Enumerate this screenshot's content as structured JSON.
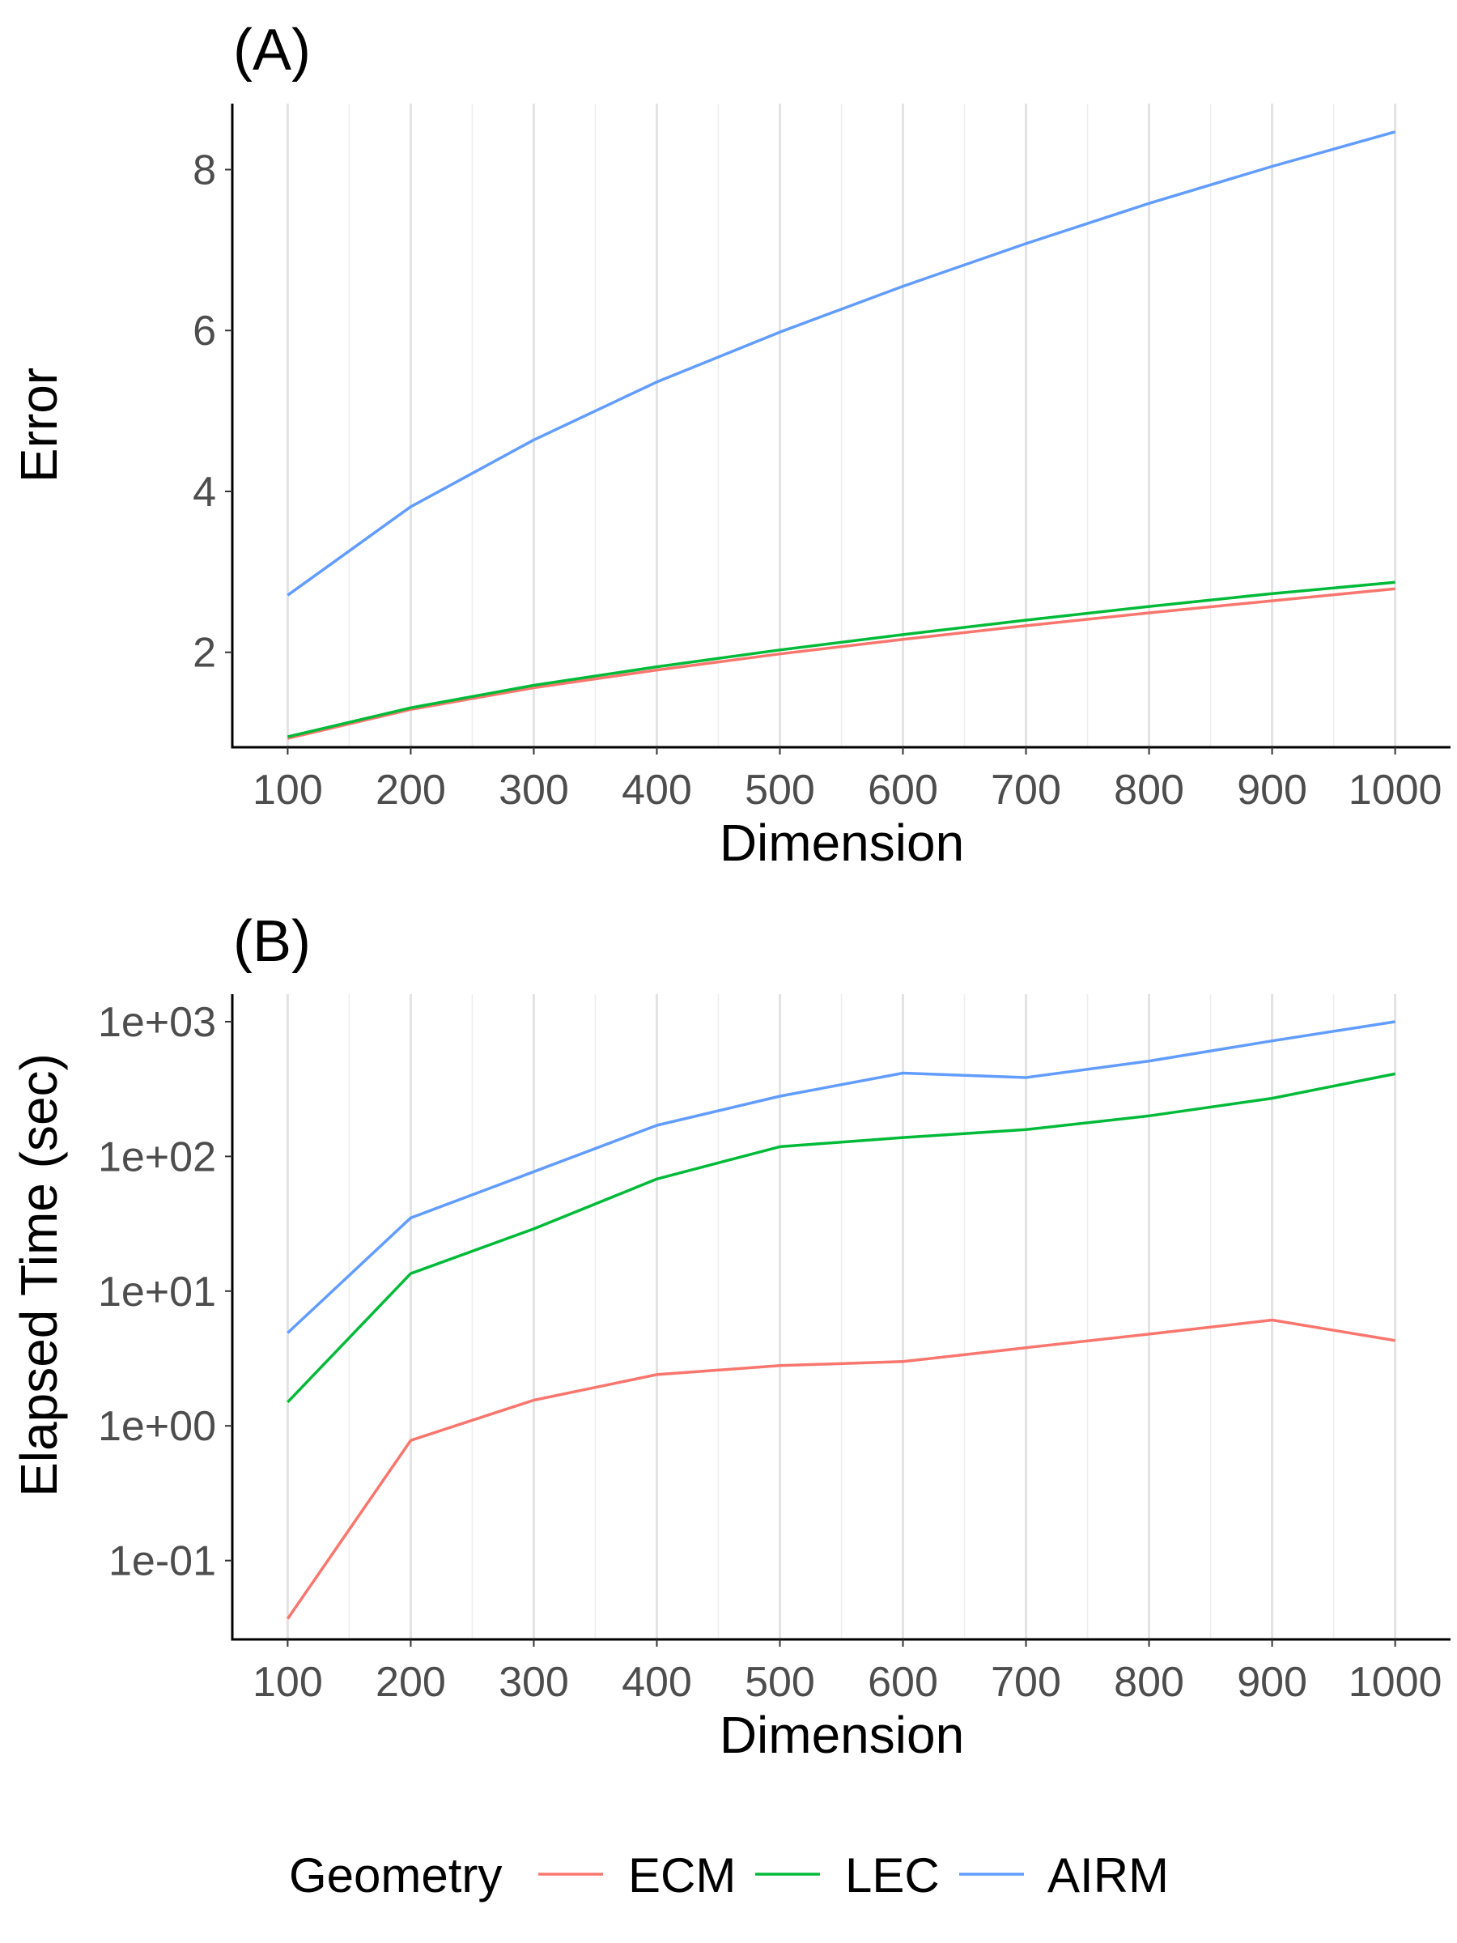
{
  "chart_data": [
    {
      "type": "line",
      "title": "(A)",
      "xlabel": "Dimension",
      "ylabel": "Error",
      "yscale": "linear",
      "x": [
        100,
        200,
        300,
        400,
        500,
        600,
        700,
        800,
        900,
        1000
      ],
      "xlim": [
        55,
        1045
      ],
      "ylim": [
        0.82,
        8.82
      ],
      "x_ticks": [
        100,
        200,
        300,
        400,
        500,
        600,
        700,
        800,
        900,
        1000
      ],
      "x_tick_labels": [
        "100",
        "200",
        "300",
        "400",
        "500",
        "600",
        "700",
        "800",
        "900",
        "1000"
      ],
      "y_ticks": [
        2,
        4,
        6,
        8
      ],
      "y_tick_labels": [
        "2",
        "4",
        "6",
        "8"
      ],
      "series": [
        {
          "name": "ECM",
          "color": "#F8766D",
          "values": [
            0.93,
            1.29,
            1.56,
            1.78,
            1.98,
            2.16,
            2.33,
            2.49,
            2.64,
            2.79
          ]
        },
        {
          "name": "LEC",
          "color": "#00BA38",
          "values": [
            0.95,
            1.31,
            1.59,
            1.82,
            2.03,
            2.22,
            2.4,
            2.57,
            2.73,
            2.87
          ]
        },
        {
          "name": "AIRM",
          "color": "#619CFF",
          "values": [
            2.71,
            3.81,
            4.64,
            5.36,
            5.98,
            6.55,
            7.08,
            7.58,
            8.04,
            8.47
          ]
        }
      ]
    },
    {
      "type": "line",
      "title": "(B)",
      "xlabel": "Dimension",
      "ylabel": "Elapsed Time (sec)",
      "yscale": "log10",
      "x": [
        100,
        200,
        300,
        400,
        500,
        600,
        700,
        800,
        900,
        1000
      ],
      "xlim": [
        55,
        1045
      ],
      "ylim": [
        0.026,
        1600
      ],
      "x_ticks": [
        100,
        200,
        300,
        400,
        500,
        600,
        700,
        800,
        900,
        1000
      ],
      "x_tick_labels": [
        "100",
        "200",
        "300",
        "400",
        "500",
        "600",
        "700",
        "800",
        "900",
        "1000"
      ],
      "y_ticks": [
        0.1,
        1,
        10,
        100,
        1000
      ],
      "y_tick_labels": [
        "1e-01",
        "1e+00",
        "1e+01",
        "1e+02",
        "1e+03"
      ],
      "series": [
        {
          "name": "ECM",
          "color": "#F8766D",
          "values": [
            0.037,
            0.78,
            1.55,
            2.4,
            2.8,
            3.0,
            3.8,
            4.8,
            6.1,
            4.3
          ]
        },
        {
          "name": "LEC",
          "color": "#00BA38",
          "values": [
            1.5,
            13.5,
            29,
            68,
            118,
            138,
            158,
            200,
            270,
            410
          ]
        },
        {
          "name": "AIRM",
          "color": "#619CFF",
          "values": [
            4.9,
            35,
            77,
            170,
            280,
            415,
            385,
            510,
            720,
            1000
          ]
        }
      ]
    }
  ],
  "legend": {
    "title": "Geometry",
    "position": "bottom",
    "entries": [
      {
        "name": "ECM",
        "color": "#F8766D"
      },
      {
        "name": "LEC",
        "color": "#00BA38"
      },
      {
        "name": "AIRM",
        "color": "#619CFF"
      }
    ]
  }
}
